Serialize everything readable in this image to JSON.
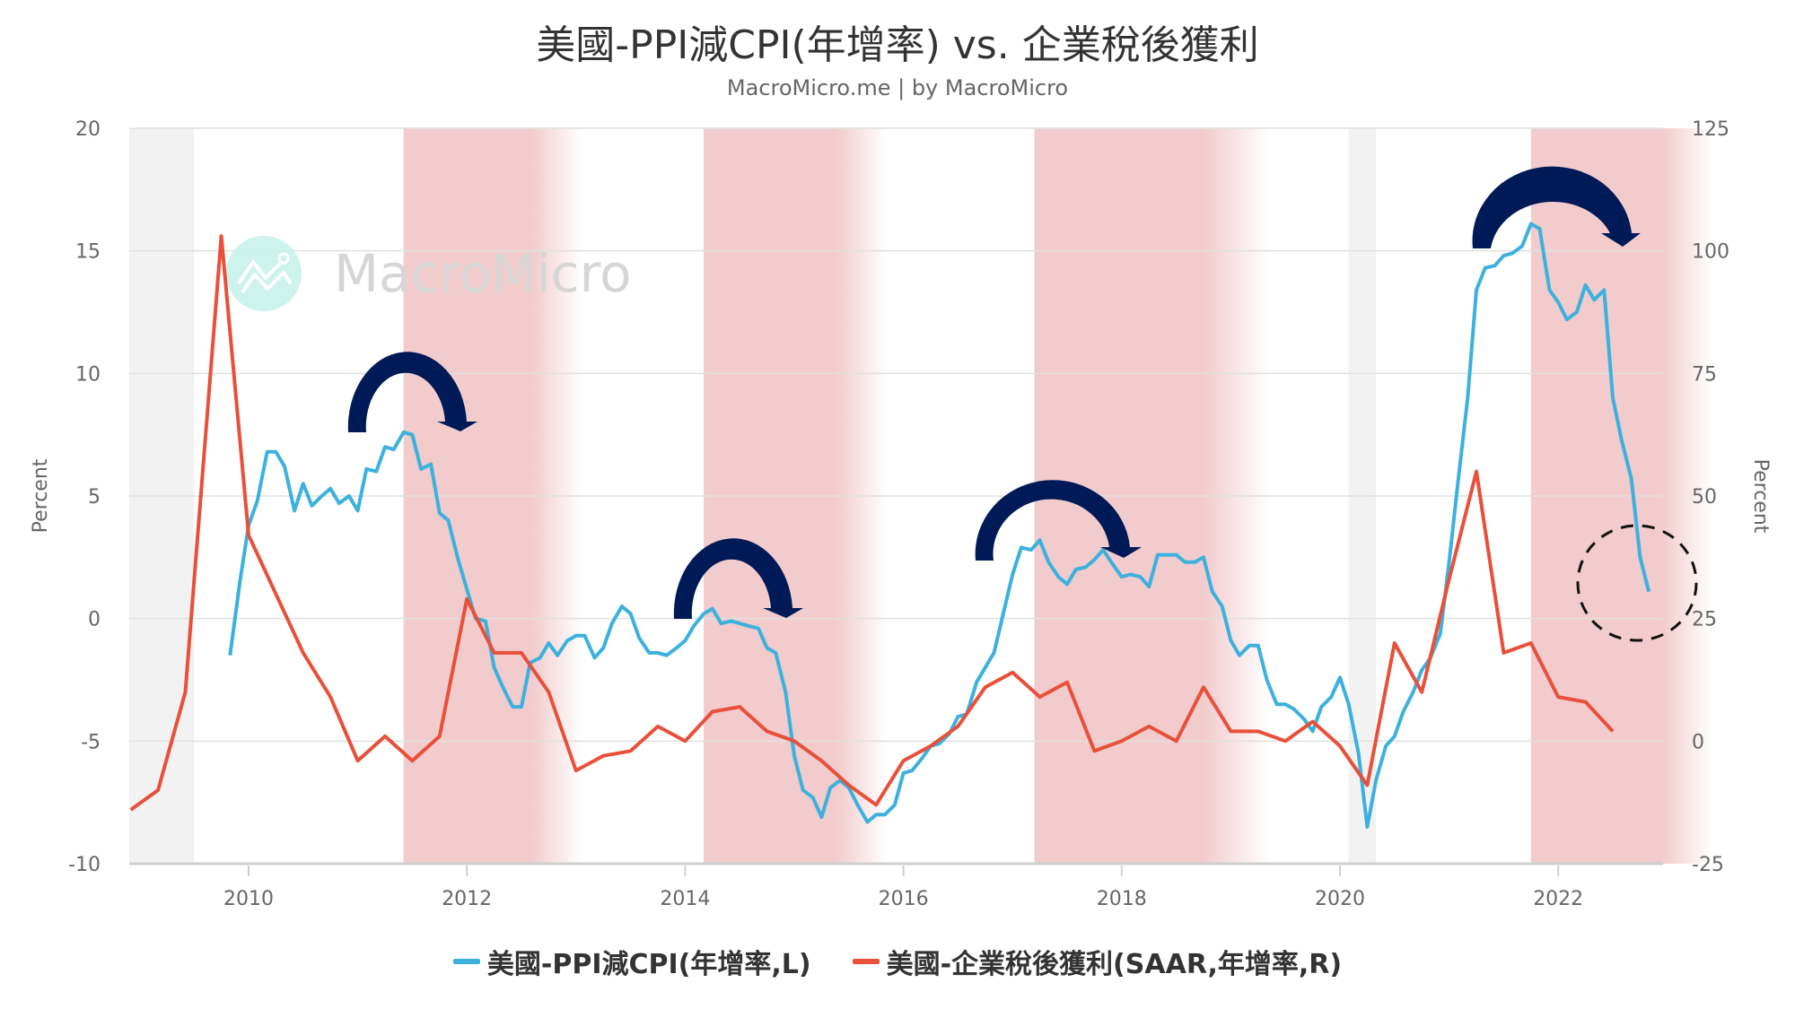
{
  "header": {
    "title": "美國-PPI減CPI(年增率) vs. 企業稅後獲利",
    "subtitle": "MacroMicro.me | by MacroMicro"
  },
  "watermark": {
    "text": "MacroMicro",
    "icon": "chart-line-icon",
    "circle_color": "#c8f2ea"
  },
  "axes": {
    "left": {
      "title": "Percent",
      "ticks": [
        "20",
        "15",
        "10",
        "5",
        "0",
        "-5",
        "-10"
      ],
      "values": [
        20,
        15,
        10,
        5,
        0,
        -5,
        -10
      ]
    },
    "right": {
      "title": "Percent",
      "ticks": [
        "125",
        "100",
        "75",
        "50",
        "25",
        "0",
        "-25"
      ],
      "values": [
        125,
        100,
        75,
        50,
        25,
        0,
        -25
      ]
    },
    "x": {
      "ticks": [
        "2010",
        "2012",
        "2014",
        "2016",
        "2018",
        "2020",
        "2022"
      ]
    }
  },
  "legend": {
    "items": [
      {
        "label": "美國-PPI減CPI(年增率,L)",
        "color": "#3cb1de"
      },
      {
        "label": "美國-企業稅後獲利(SAAR,年增率,R)",
        "color": "#e8503a"
      }
    ]
  },
  "colors": {
    "recession_band": "#f2cbcd",
    "grey_band": "#f2f2f2",
    "arrow": "#00205b",
    "grid": "#e0e0e0"
  },
  "annotations": {
    "arrows": 4,
    "dashed_circle": "highlight latest PPI-CPI reading"
  },
  "chart_data": {
    "type": "line",
    "title": "美國-PPI減CPI(年增率) vs. 企業稅後獲利",
    "subtitle": "MacroMicro.me | by MacroMicro",
    "xlabel": "",
    "ylabel_left": "Percent",
    "ylabel_right": "Percent",
    "ylim_left": [
      -10,
      20
    ],
    "ylim_right": [
      -25,
      125
    ],
    "xlim": [
      2008.9,
      2023.1
    ],
    "grid": true,
    "legend_position": "bottom",
    "shaded_periods": [
      {
        "start": 2008.9,
        "end": 2009.5,
        "type": "grey"
      },
      {
        "start": 2011.42,
        "end": 2012.6,
        "type": "pink"
      },
      {
        "start": 2014.17,
        "end": 2015.4,
        "type": "pink"
      },
      {
        "start": 2017.2,
        "end": 2018.9,
        "type": "pink"
      },
      {
        "start": 2020.08,
        "end": 2020.33,
        "type": "grey"
      },
      {
        "start": 2021.75,
        "end": 2023.0,
        "type": "pink"
      }
    ],
    "series": [
      {
        "name": "美國-PPI減CPI(年增率,L)",
        "axis": "left",
        "color": "#3cb1de",
        "x": [
          2009.83,
          2009.92,
          2010.0,
          2010.08,
          2010.17,
          2010.25,
          2010.33,
          2010.42,
          2010.5,
          2010.58,
          2010.67,
          2010.75,
          2010.83,
          2010.92,
          2011.0,
          2011.08,
          2011.17,
          2011.25,
          2011.33,
          2011.42,
          2011.5,
          2011.58,
          2011.67,
          2011.75,
          2011.83,
          2011.92,
          2012.0,
          2012.08,
          2012.17,
          2012.25,
          2012.33,
          2012.42,
          2012.5,
          2012.58,
          2012.67,
          2012.75,
          2012.83,
          2012.92,
          2013.0,
          2013.08,
          2013.17,
          2013.25,
          2013.33,
          2013.42,
          2013.5,
          2013.58,
          2013.67,
          2013.75,
          2013.83,
          2013.92,
          2014.0,
          2014.08,
          2014.17,
          2014.25,
          2014.33,
          2014.42,
          2014.5,
          2014.58,
          2014.67,
          2014.75,
          2014.83,
          2014.92,
          2015.0,
          2015.08,
          2015.17,
          2015.25,
          2015.33,
          2015.42,
          2015.5,
          2015.58,
          2015.67,
          2015.75,
          2015.83,
          2015.92,
          2016.0,
          2016.08,
          2016.17,
          2016.25,
          2016.33,
          2016.42,
          2016.5,
          2016.58,
          2016.67,
          2016.75,
          2016.83,
          2016.92,
          2017.0,
          2017.08,
          2017.17,
          2017.25,
          2017.33,
          2017.42,
          2017.5,
          2017.58,
          2017.67,
          2017.75,
          2017.83,
          2017.92,
          2018.0,
          2018.08,
          2018.17,
          2018.25,
          2018.33,
          2018.42,
          2018.5,
          2018.58,
          2018.67,
          2018.75,
          2018.83,
          2018.92,
          2019.0,
          2019.08,
          2019.17,
          2019.25,
          2019.33,
          2019.42,
          2019.5,
          2019.58,
          2019.67,
          2019.75,
          2019.83,
          2019.92,
          2020.0,
          2020.08,
          2020.17,
          2020.25,
          2020.33,
          2020.42,
          2020.5,
          2020.58,
          2020.67,
          2020.75,
          2020.83,
          2020.92,
          2021.0,
          2021.08,
          2021.17,
          2021.25,
          2021.33,
          2021.42,
          2021.5,
          2021.58,
          2021.67,
          2021.75,
          2021.83,
          2021.92,
          2022.0,
          2022.08,
          2022.17,
          2022.25,
          2022.33,
          2022.42,
          2022.5,
          2022.58,
          2022.67,
          2022.75,
          2022.83
        ],
        "values": [
          -1.5,
          1.5,
          3.8,
          4.8,
          6.8,
          6.8,
          6.2,
          4.4,
          5.5,
          4.6,
          5.0,
          5.3,
          4.7,
          5.0,
          4.4,
          6.1,
          6.0,
          7.0,
          6.9,
          7.6,
          7.5,
          6.1,
          6.3,
          4.3,
          4.0,
          2.4,
          1.2,
          0.0,
          -0.1,
          -2.0,
          -2.8,
          -3.6,
          -3.6,
          -1.8,
          -1.6,
          -1.0,
          -1.5,
          -0.9,
          -0.7,
          -0.7,
          -1.6,
          -1.2,
          -0.2,
          0.5,
          0.2,
          -0.8,
          -1.4,
          -1.4,
          -1.5,
          -1.2,
          -0.9,
          -0.3,
          0.2,
          0.4,
          -0.2,
          -0.1,
          -0.2,
          -0.3,
          -0.4,
          -1.2,
          -1.4,
          -3.0,
          -5.6,
          -7.0,
          -7.3,
          -8.1,
          -6.9,
          -6.6,
          -6.9,
          -7.6,
          -8.3,
          -8.0,
          -8.0,
          -7.6,
          -6.3,
          -6.2,
          -5.7,
          -5.2,
          -5.1,
          -4.7,
          -4.0,
          -3.9,
          -2.6,
          -2.0,
          -1.4,
          0.3,
          1.8,
          2.9,
          2.8,
          3.2,
          2.3,
          1.7,
          1.4,
          2.0,
          2.1,
          2.4,
          2.8,
          2.2,
          1.7,
          1.8,
          1.7,
          1.3,
          2.6,
          2.6,
          2.6,
          2.3,
          2.3,
          2.5,
          1.1,
          0.5,
          -0.9,
          -1.5,
          -1.1,
          -1.1,
          -2.5,
          -3.5,
          -3.5,
          -3.7,
          -4.1,
          -4.6,
          -3.6,
          -3.2,
          -2.4,
          -3.5,
          -5.5,
          -8.5,
          -6.6,
          -5.2,
          -4.8,
          -3.8,
          -3.0,
          -2.1,
          -1.6,
          -0.6,
          2.3,
          5.5,
          9.0,
          13.4,
          14.3,
          14.4,
          14.8,
          14.9,
          15.2,
          16.1,
          15.9,
          13.4,
          12.9,
          12.2,
          12.5,
          13.6,
          13.0,
          13.4,
          9.0,
          7.3,
          5.7,
          2.5,
          1.1
        ]
      },
      {
        "name": "美國-企業稅後獲利(SAAR,年增率,R)",
        "axis": "right",
        "color": "#e8503a",
        "x": [
          2008.92,
          2009.17,
          2009.42,
          2009.75,
          2010.0,
          2010.25,
          2010.5,
          2010.75,
          2011.0,
          2011.25,
          2011.5,
          2011.75,
          2012.0,
          2012.25,
          2012.5,
          2012.75,
          2013.0,
          2013.25,
          2013.5,
          2013.75,
          2014.0,
          2014.25,
          2014.5,
          2014.75,
          2015.0,
          2015.25,
          2015.5,
          2015.75,
          2016.0,
          2016.25,
          2016.5,
          2016.75,
          2017.0,
          2017.25,
          2017.5,
          2017.75,
          2018.0,
          2018.25,
          2018.5,
          2018.75,
          2019.0,
          2019.25,
          2019.5,
          2019.75,
          2020.0,
          2020.25,
          2020.5,
          2020.75,
          2021.0,
          2021.25,
          2021.5,
          2021.75,
          2022.0,
          2022.25,
          2022.5
        ],
        "values": [
          -14,
          -10,
          10,
          103,
          42,
          30,
          18,
          9,
          -4,
          1,
          -4,
          1,
          29,
          18,
          18,
          10,
          -6,
          -3,
          -2,
          3,
          0,
          6,
          7,
          2,
          0,
          -4,
          -9,
          -13,
          -4,
          -1,
          3,
          11,
          14,
          9,
          12,
          -2,
          0,
          3,
          0,
          11,
          2,
          2,
          0,
          4,
          -1,
          -9,
          20,
          10,
          33,
          55,
          18,
          20,
          9,
          8,
          2
        ]
      }
    ]
  }
}
